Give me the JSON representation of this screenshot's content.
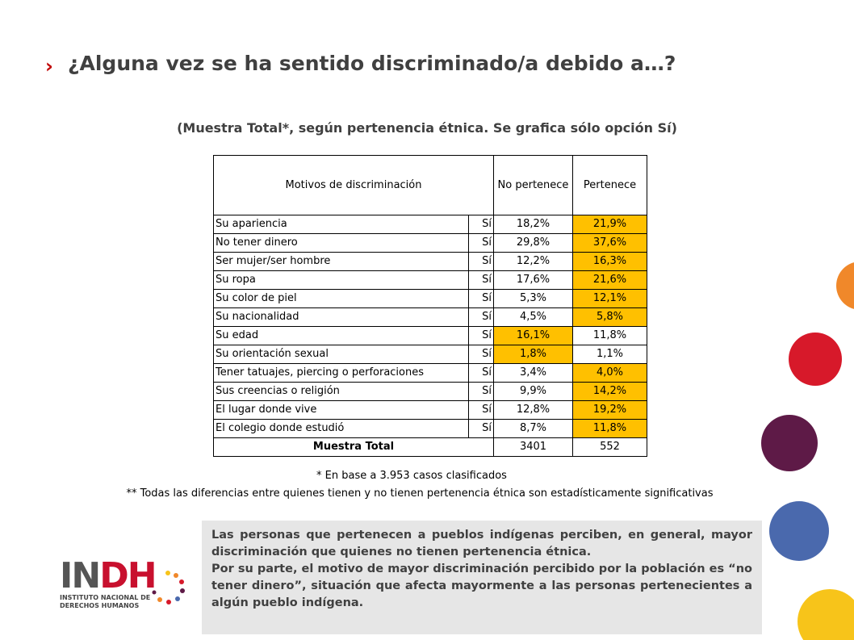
{
  "header": {
    "title": "¿Alguna vez se ha sentido discriminado/a debido a…?",
    "subtitle": "(Muestra Total*, según pertenencia étnica. Se grafica sólo opción Sí)"
  },
  "table": {
    "columns": [
      "Motivos de discriminación",
      "No pertenece",
      "Pertenece"
    ],
    "highlight_color": "#ffc000",
    "rows": [
      {
        "motivo": "Su apariencia",
        "opcion": "Sí",
        "no_pertenece": "18,2%",
        "pertenece": "21,9%",
        "highlight": "pertenece"
      },
      {
        "motivo": "No tener dinero",
        "opcion": "Sí",
        "no_pertenece": "29,8%",
        "pertenece": "37,6%",
        "highlight": "pertenece"
      },
      {
        "motivo": "Ser mujer/ser hombre",
        "opcion": "Sí",
        "no_pertenece": "12,2%",
        "pertenece": "16,3%",
        "highlight": "pertenece"
      },
      {
        "motivo": "Su ropa",
        "opcion": "Sí",
        "no_pertenece": "17,6%",
        "pertenece": "21,6%",
        "highlight": "pertenece"
      },
      {
        "motivo": "Su color de piel",
        "opcion": "Sí",
        "no_pertenece": "5,3%",
        "pertenece": "12,1%",
        "highlight": "pertenece"
      },
      {
        "motivo": "Su nacionalidad",
        "opcion": "Sí",
        "no_pertenece": "4,5%",
        "pertenece": "5,8%",
        "highlight": "pertenece"
      },
      {
        "motivo": "Su edad",
        "opcion": "Sí",
        "no_pertenece": "16,1%",
        "pertenece": "11,8%",
        "highlight": "no_pertenece"
      },
      {
        "motivo": "Su orientación sexual",
        "opcion": "Sí",
        "no_pertenece": "1,8%",
        "pertenece": "1,1%",
        "highlight": "no_pertenece"
      },
      {
        "motivo": "Tener tatuajes, piercing o perforaciones",
        "opcion": "Sí",
        "no_pertenece": "3,4%",
        "pertenece": "4,0%",
        "highlight": "pertenece"
      },
      {
        "motivo": "Sus creencias o religión",
        "opcion": "Sí",
        "no_pertenece": "9,9%",
        "pertenece": "14,2%",
        "highlight": "pertenece"
      },
      {
        "motivo": "El lugar donde vive",
        "opcion": "Sí",
        "no_pertenece": "12,8%",
        "pertenece": "19,2%",
        "highlight": "pertenece"
      },
      {
        "motivo": "El colegio donde estudió",
        "opcion": "Sí",
        "no_pertenece": "8,7%",
        "pertenece": "11,8%",
        "highlight": "pertenece"
      }
    ],
    "total": {
      "label": "Muestra Total",
      "no_pertenece": "3401",
      "pertenece": "552"
    }
  },
  "footnotes": [
    "* En base a 3.953 casos clasificados",
    "** Todas las diferencias entre quienes tienen y no tienen  pertenencia étnica son estadísticamente significativas"
  ],
  "summary": [
    "Las personas que pertenecen a pueblos indígenas perciben, en general, mayor discriminación que quienes no tienen pertenencia étnica.",
    "Por su parte, el motivo de mayor discriminación percibido por la población es “no tener dinero”, situación que afecta mayormente a las personas pertenecientes a algún pueblo indígena."
  ],
  "logo": {
    "mark_left": "IN",
    "mark_right": "DH",
    "line1": "INSTITUTO NACIONAL DE",
    "line2": "DERECHOS HUMANOS"
  }
}
